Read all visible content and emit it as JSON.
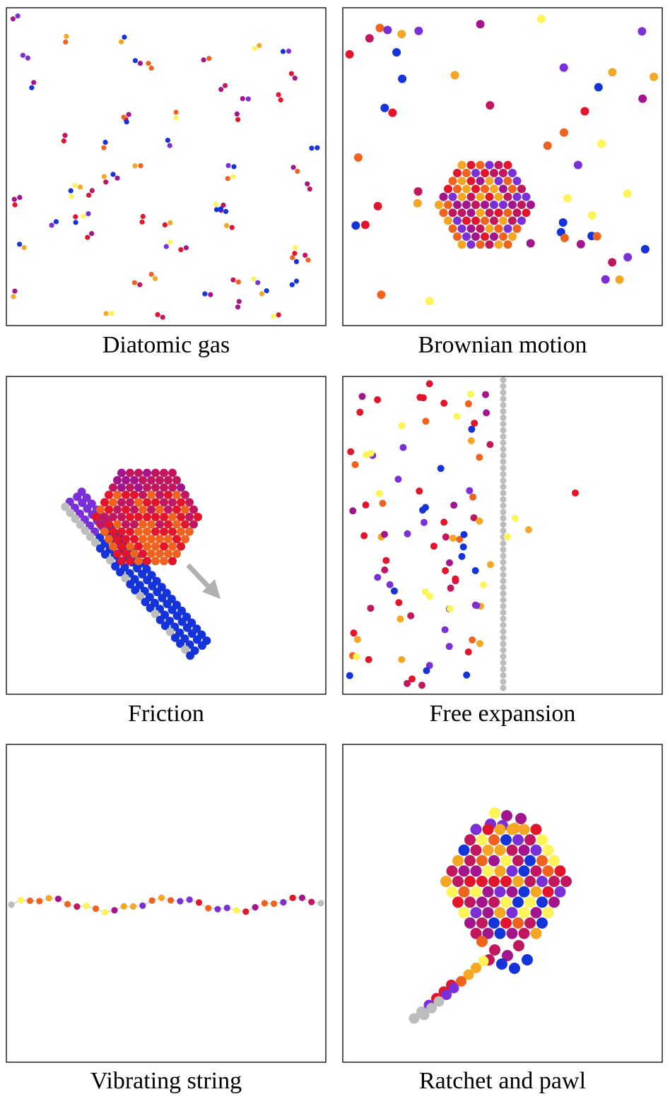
{
  "figure": {
    "palette": {
      "violet": "#7b2fd6",
      "purple": "#a3158c",
      "magenta": "#c0175f",
      "red": "#e3152b",
      "orange": "#f0631f",
      "amber": "#f5a623",
      "yellow": "#fff35a",
      "blue": "#1434d9",
      "gray": "#bdbdbd",
      "arrow": "#b0b0b0",
      "border": "#222222"
    },
    "panels": [
      {
        "caption": "Diatomic gas"
      },
      {
        "caption": "Brownian motion"
      },
      {
        "caption": "Friction"
      },
      {
        "caption": "Free expansion"
      },
      {
        "caption": "Vibrating string"
      },
      {
        "caption": "Ratchet and pawl"
      }
    ]
  }
}
